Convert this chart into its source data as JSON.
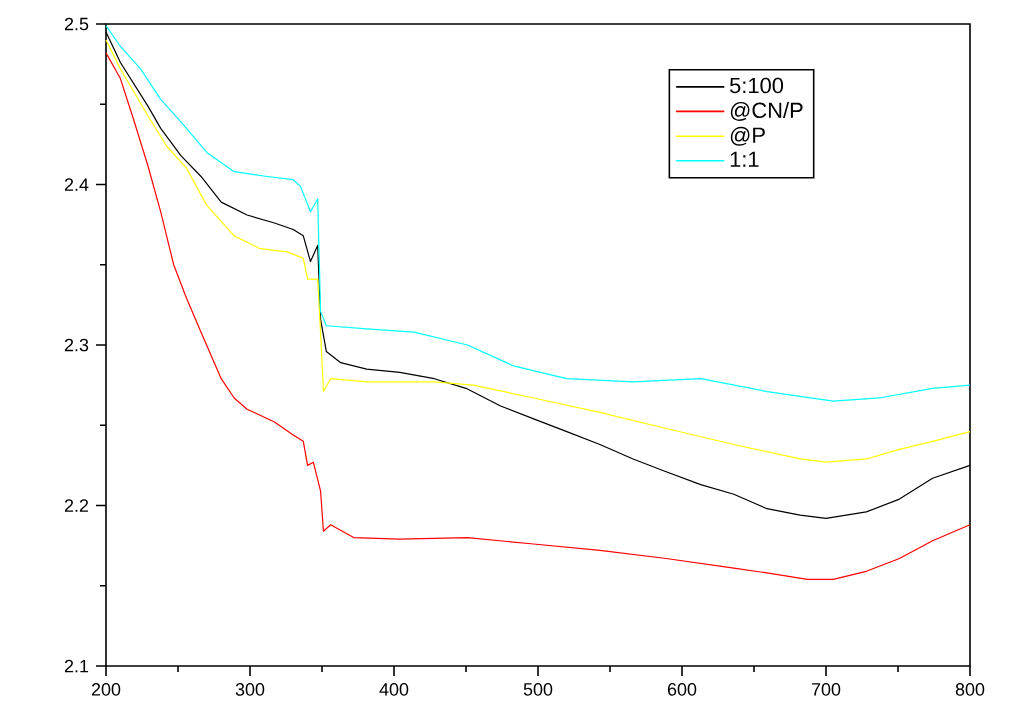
{
  "chart_data": {
    "type": "line",
    "xlim": [
      200,
      800
    ],
    "ylim": [
      2.1,
      2.5
    ],
    "xticks": [
      200,
      300,
      400,
      500,
      600,
      700,
      800
    ],
    "yticks": [
      2.1,
      2.2,
      2.3,
      2.4,
      2.5
    ],
    "legend": "top right",
    "grid": false,
    "marker": "none",
    "line_style": "solid",
    "series": [
      {
        "name": "5:100",
        "color": "#000000",
        "x": [
          200,
          210,
          229,
          238,
          252,
          266,
          280,
          298,
          317,
          330,
          337,
          342,
          347,
          349,
          353,
          363,
          381,
          404,
          428,
          450,
          474,
          497,
          520,
          543,
          566,
          589,
          613,
          636,
          659,
          682,
          700,
          728,
          751,
          774,
          800
        ],
        "values": [
          2.495,
          2.476,
          2.449,
          2.435,
          2.418,
          2.405,
          2.389,
          2.381,
          2.376,
          2.372,
          2.368,
          2.352,
          2.362,
          2.316,
          2.296,
          2.289,
          2.285,
          2.283,
          2.279,
          2.273,
          2.262,
          2.254,
          2.246,
          2.238,
          2.229,
          2.221,
          2.213,
          2.207,
          2.198,
          2.194,
          2.192,
          2.196,
          2.204,
          2.217,
          2.225
        ]
      },
      {
        "name": "@CN/P",
        "color": "#ff0000",
        "x": [
          200,
          210,
          219,
          229,
          238,
          247,
          256,
          266,
          280,
          289,
          298,
          317,
          330,
          337,
          340,
          344,
          349,
          351,
          356,
          372,
          404,
          451,
          497,
          543,
          589,
          636,
          659,
          687,
          705,
          728,
          751,
          774,
          800
        ],
        "values": [
          2.482,
          2.466,
          2.441,
          2.412,
          2.383,
          2.35,
          2.329,
          2.308,
          2.279,
          2.267,
          2.26,
          2.252,
          2.244,
          2.24,
          2.225,
          2.227,
          2.209,
          2.184,
          2.188,
          2.18,
          2.179,
          2.18,
          2.176,
          2.172,
          2.167,
          2.161,
          2.158,
          2.154,
          2.154,
          2.159,
          2.167,
          2.178,
          2.188
        ]
      },
      {
        "name": "@P",
        "color": "#ffff00",
        "x": [
          200,
          210,
          229,
          242,
          256,
          270,
          289,
          307,
          326,
          337,
          340,
          347,
          349,
          351,
          356,
          381,
          428,
          455,
          497,
          543,
          589,
          636,
          682,
          700,
          728,
          751,
          774,
          800
        ],
        "values": [
          2.49,
          2.472,
          2.443,
          2.424,
          2.41,
          2.387,
          2.368,
          2.36,
          2.358,
          2.354,
          2.341,
          2.341,
          2.308,
          2.271,
          2.279,
          2.277,
          2.277,
          2.275,
          2.267,
          2.258,
          2.248,
          2.238,
          2.229,
          2.227,
          2.229,
          2.235,
          2.24,
          2.246
        ]
      },
      {
        "name": "1:1",
        "color": "#00ffff",
        "x": [
          200,
          210,
          224,
          238,
          252,
          270,
          289,
          312,
          330,
          335,
          342,
          347,
          349,
          353,
          381,
          414,
          451,
          483,
          520,
          566,
          613,
          636,
          659,
          705,
          737,
          774,
          800
        ],
        "values": [
          2.499,
          2.486,
          2.472,
          2.453,
          2.439,
          2.42,
          2.408,
          2.405,
          2.403,
          2.399,
          2.383,
          2.391,
          2.321,
          2.312,
          2.31,
          2.308,
          2.3,
          2.287,
          2.279,
          2.277,
          2.279,
          2.275,
          2.271,
          2.265,
          2.267,
          2.273,
          2.275
        ]
      }
    ]
  }
}
